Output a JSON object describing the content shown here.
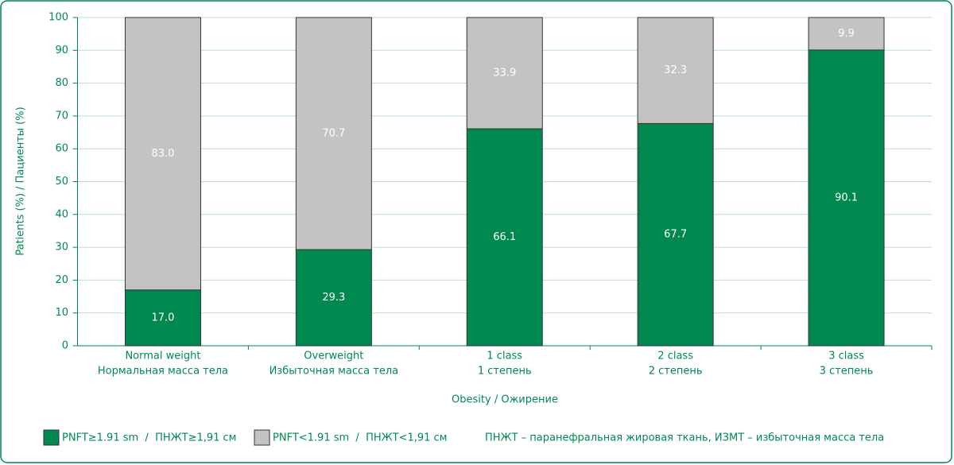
{
  "chart_data": {
    "type": "stacked_bar",
    "categories": [
      [
        "Normal weight",
        "Нормальная масса тела"
      ],
      [
        "Overweight",
        "Избыточная масса тела"
      ],
      [
        "1 class",
        "1 степень"
      ],
      [
        "2 class",
        "2 степень"
      ],
      [
        "3 class",
        "3 степень"
      ]
    ],
    "series": [
      {
        "name": "PNFT≥1.91 sm  /  ПНЖТ≥1,91 см",
        "color": "#00894f",
        "values": [
          17.0,
          29.3,
          66.1,
          67.7,
          90.1
        ],
        "value_labels": [
          "17.0",
          "29.3",
          "66.1",
          "67.7",
          "90.1"
        ]
      },
      {
        "name": "PNFT<1.91 sm  /  ПНЖТ<1,91 см",
        "color": "#c3c3c4",
        "values": [
          83.0,
          70.7,
          33.9,
          32.3,
          9.9
        ],
        "value_labels": [
          "83.0",
          "70.7",
          "33.9",
          "32.3",
          "9.9"
        ]
      }
    ],
    "xlabel": "Obesity / Ожирение",
    "ylabel": "Patients (%) / Пациенты (%)",
    "annotation": "ПНЖТ – паранефральная жировая ткань, ИЗМТ – избыточная масса тела",
    "ylim": [
      0,
      100
    ],
    "yticks": [
      0,
      10,
      20,
      30,
      40,
      50,
      60,
      70,
      80,
      90,
      100
    ],
    "grid": true
  }
}
